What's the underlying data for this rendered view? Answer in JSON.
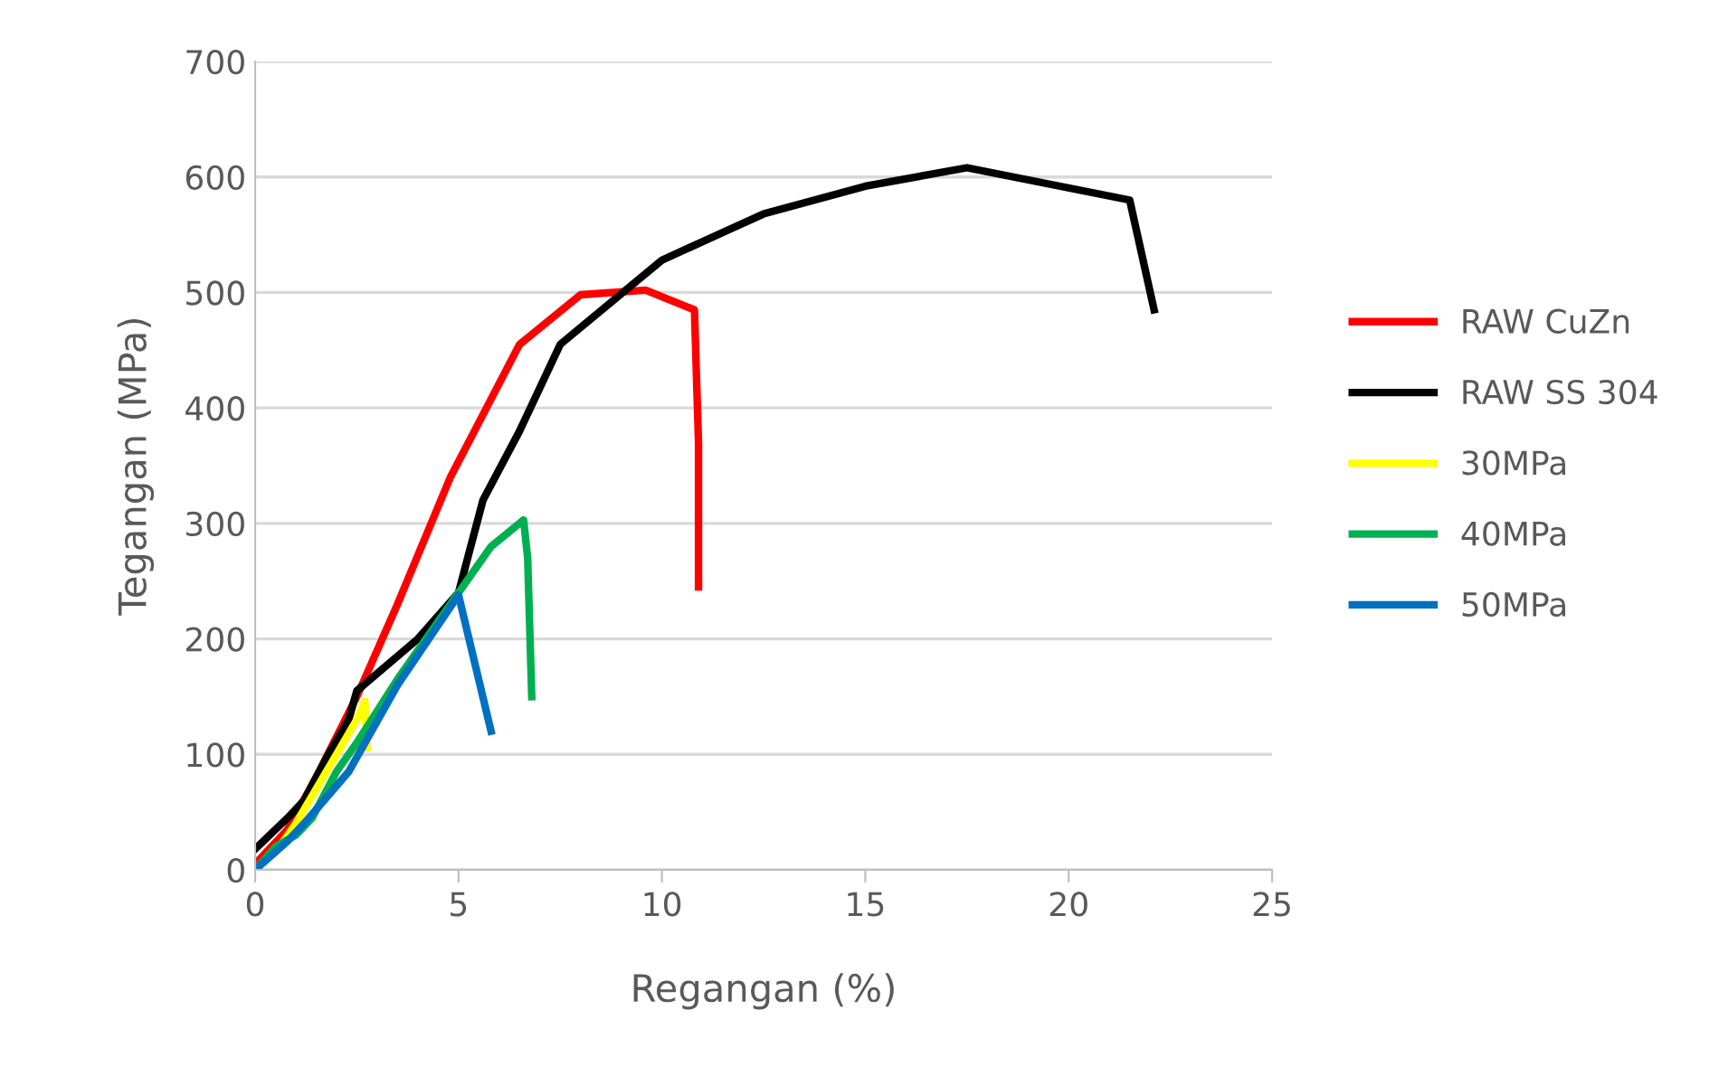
{
  "chart_data": {
    "type": "line",
    "xlabel": "Regangan (%)",
    "ylabel": "Tegangan (MPa)",
    "xlim": [
      0,
      25
    ],
    "xticks": [
      0,
      5,
      10,
      15,
      20,
      25
    ],
    "ylim": [
      0,
      700
    ],
    "yticks": [
      0,
      100,
      200,
      300,
      400,
      500,
      600,
      700
    ],
    "grid": "y",
    "legend": "right",
    "marker": "none",
    "line_style": "solid",
    "series": [
      {
        "name": "RAW CuZn",
        "color": "#ff0000",
        "x": [
          0,
          0.8,
          1.5,
          2.5,
          3.5,
          4.8,
          6.5,
          8,
          9.6,
          10.8,
          10.9,
          10.9
        ],
        "values": [
          5,
          35,
          80,
          150,
          230,
          340,
          455,
          498,
          502,
          485,
          370,
          245
        ]
      },
      {
        "name": "RAW SS 304",
        "color": "#000000",
        "x": [
          0,
          0.8,
          1.2,
          1.8,
          2.3,
          2.5,
          4,
          5,
          5.6,
          6.5,
          7.5,
          10,
          12.5,
          15,
          17.5,
          21.5,
          22.1
        ],
        "values": [
          18,
          45,
          60,
          100,
          130,
          155,
          200,
          240,
          320,
          380,
          455,
          528,
          568,
          592,
          608,
          580,
          485
        ]
      },
      {
        "name": "30MPa",
        "color": "#ffff00",
        "x": [
          0,
          0.5,
          1,
          1.5,
          2,
          2.5,
          2.7,
          2.75
        ],
        "values": [
          0,
          15,
          40,
          70,
          100,
          130,
          146,
          106
        ]
      },
      {
        "name": "40MPa",
        "color": "#00b050",
        "x": [
          0,
          0.5,
          1,
          1.4,
          2,
          2.5,
          3.5,
          5,
          5.8,
          6.6,
          6.7,
          6.8
        ],
        "values": [
          0,
          20,
          30,
          45,
          85,
          110,
          165,
          240,
          280,
          303,
          270,
          150
        ]
      },
      {
        "name": "50MPa",
        "color": "#0070c0",
        "x": [
          0,
          0.8,
          1.2,
          2.3,
          3.5,
          5,
          5.8
        ],
        "values": [
          0,
          25,
          40,
          85,
          160,
          238,
          120
        ]
      }
    ]
  }
}
